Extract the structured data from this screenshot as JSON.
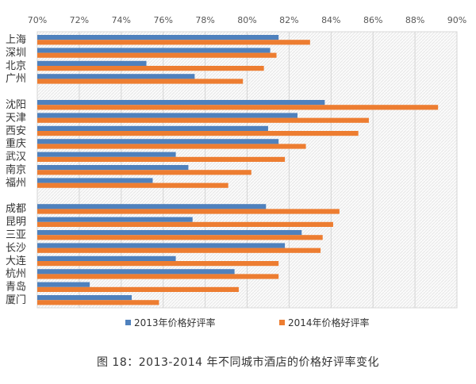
{
  "caption": "图 18：2013-2014 年不同城市酒店的价格好评率变化",
  "chart_data": {
    "type": "bar",
    "orientation": "horizontal",
    "xlim": [
      70,
      90
    ],
    "x_ticks": [
      70,
      72,
      74,
      76,
      78,
      80,
      82,
      84,
      86,
      88,
      90
    ],
    "x_tick_labels": [
      "70%",
      "72%",
      "74%",
      "76%",
      "78%",
      "80%",
      "82%",
      "84%",
      "86%",
      "88%",
      "90%"
    ],
    "x_axis_position": "top",
    "legend_position": "bottom",
    "grid": true,
    "colors": {
      "2013": "#4f81bd",
      "2014": "#ed7d31"
    },
    "groups": [
      [
        "上海",
        "深圳",
        "北京",
        "广州"
      ],
      [
        "沈阳",
        "天津",
        "西安",
        "重庆",
        "武汉",
        "南京",
        "福州"
      ],
      [
        "成都",
        "昆明",
        "三亚",
        "长沙",
        "大连",
        "杭州",
        "青岛",
        "厦门"
      ]
    ],
    "categories": [
      "上海",
      "深圳",
      "北京",
      "广州",
      "沈阳",
      "天津",
      "西安",
      "重庆",
      "武汉",
      "南京",
      "福州",
      "成都",
      "昆明",
      "三亚",
      "长沙",
      "大连",
      "杭州",
      "青岛",
      "厦门"
    ],
    "series": [
      {
        "name": "2013年价格好评率",
        "key": "2013",
        "values": [
          81.5,
          81.1,
          75.2,
          77.5,
          83.7,
          82.4,
          81.0,
          81.5,
          76.6,
          77.2,
          75.5,
          80.9,
          77.4,
          82.6,
          81.8,
          76.6,
          79.4,
          72.5,
          74.5
        ]
      },
      {
        "name": "2014年价格好评率",
        "key": "2014",
        "values": [
          83.0,
          81.4,
          80.8,
          79.8,
          89.1,
          85.8,
          85.3,
          82.8,
          81.8,
          80.2,
          79.1,
          84.4,
          84.1,
          83.6,
          83.5,
          81.5,
          81.5,
          79.6,
          75.8
        ]
      }
    ]
  }
}
